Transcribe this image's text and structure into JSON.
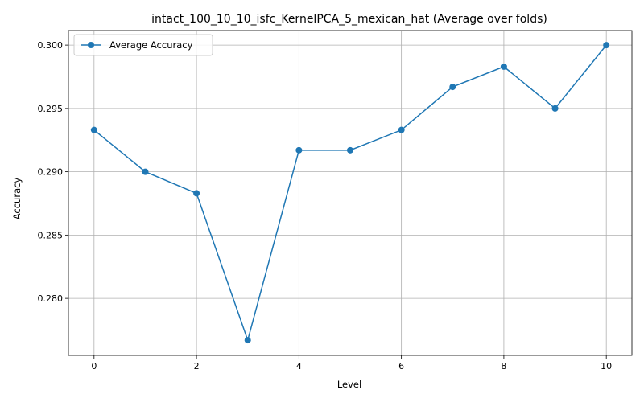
{
  "chart_data": {
    "type": "line",
    "title": "intact_100_10_10_isfc_KernelPCA_5_mexican_hat (Average over folds)",
    "xlabel": "Level",
    "ylabel": "Accuracy",
    "x": [
      0,
      1,
      2,
      3,
      4,
      5,
      6,
      7,
      8,
      9,
      10
    ],
    "series": [
      {
        "name": "Average Accuracy",
        "color": "#1f77b4",
        "marker": "circle",
        "values": [
          0.2933,
          0.29,
          0.2883,
          0.2767,
          0.2917,
          0.2917,
          0.2933,
          0.2967,
          0.2983,
          0.295,
          0.3
        ]
      }
    ],
    "xlim": [
      -0.5,
      10.5
    ],
    "ylim": [
      0.2755,
      0.30115
    ],
    "xticks": [
      0,
      2,
      4,
      6,
      8,
      10
    ],
    "xtick_labels": [
      "0",
      "2",
      "4",
      "6",
      "8",
      "10"
    ],
    "yticks": [
      0.28,
      0.285,
      0.29,
      0.295,
      0.3
    ],
    "ytick_labels": [
      "0.280",
      "0.285",
      "0.290",
      "0.295",
      "0.300"
    ],
    "grid": true,
    "legend_position": "top-left"
  }
}
